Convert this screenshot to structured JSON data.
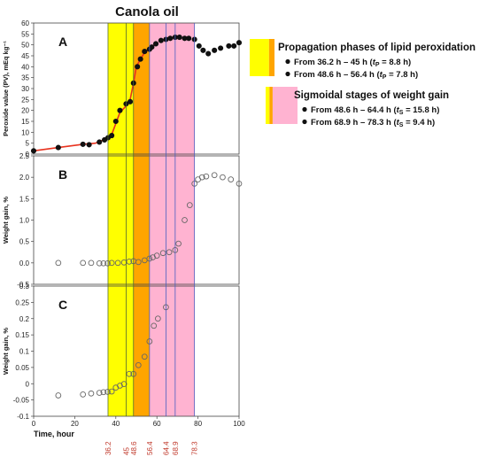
{
  "chart_data": {
    "type": "scatter",
    "title": "Canola oil",
    "xlabel": "Time, hour",
    "xlim": [
      0,
      100
    ],
    "x_ticks": [
      0,
      20,
      40,
      60,
      80,
      100
    ],
    "highlight_lines": [
      36.2,
      45,
      48.6,
      56.4,
      64.4,
      68.9,
      78.3
    ],
    "highlight_labels": [
      "36.2",
      "45",
      "48.6",
      "56.4",
      "64.4",
      "68.9",
      "78.3"
    ],
    "shaded_regions": [
      {
        "from": 36.2,
        "to": 45,
        "color": "#ffff00"
      },
      {
        "from": 45,
        "to": 48.6,
        "color": "#ffff00"
      },
      {
        "from": 48.6,
        "to": 56.4,
        "color": "#ffa500"
      },
      {
        "from": 56.4,
        "to": 78.3,
        "color": "#ffb3d1"
      }
    ],
    "panels": [
      {
        "letter": "A",
        "ylabel": "Peroxide value (PV), mEq kg⁻¹",
        "ylim": [
          0,
          60
        ],
        "y_ticks": [
          0,
          5,
          10,
          15,
          20,
          25,
          30,
          35,
          40,
          45,
          50,
          55,
          60
        ],
        "marker": "filled",
        "fit_color": "#e8321e",
        "series": [
          {
            "x": [
              0,
              12,
              24,
              27,
              32,
              34.5,
              36.2,
              38,
              40,
              42,
              45,
              47,
              48.6,
              50.5,
              52,
              54,
              56.4,
              57.5,
              59.5,
              62,
              64.4,
              66.5,
              68.9,
              71,
              73.5,
              75.5,
              78.3,
              80.5,
              82.5,
              85,
              88,
              91,
              95,
              97.5,
              100
            ],
            "y": [
              1.5,
              3,
              4.5,
              4.3,
              5.5,
              6.5,
              7.5,
              8.5,
              15,
              20,
              23,
              24,
              32.5,
              40,
              43.5,
              47,
              48,
              49,
              50.5,
              52,
              52.5,
              53,
              53.5,
              53.5,
              53,
              53,
              52.5,
              49.5,
              47.5,
              46,
              47.5,
              48.5,
              49.5,
              49.5,
              51
            ]
          }
        ],
        "fit": {
          "x": [
            0,
            12,
            24,
            30,
            34,
            36.2,
            38,
            40,
            42,
            45,
            47,
            48.6,
            50,
            52,
            54,
            56.4,
            58,
            60
          ],
          "y": [
            1.5,
            3,
            4.5,
            5,
            6.5,
            7.5,
            9,
            14,
            19,
            22,
            25,
            32.5,
            40,
            43.5,
            46.5,
            48,
            49.5,
            51
          ]
        }
      },
      {
        "letter": "B",
        "ylabel": "Weight gain, %",
        "ylim": [
          -0.5,
          2.5
        ],
        "y_ticks": [
          -0.5,
          0.0,
          0.5,
          1.0,
          1.5,
          2.0,
          2.5
        ],
        "y_tick_labels": [
          "-0.5",
          "0.0",
          "0.5",
          "1.0",
          "1.5",
          "2.0",
          "2.5"
        ],
        "marker": "open",
        "series": [
          {
            "x": [
              12,
              24,
              28,
              32,
              34,
              36,
              38,
              41,
              44,
              46.5,
              48.6,
              51,
              54,
              56.4,
              58,
              60,
              63,
              66,
              68.9,
              70.5,
              73.5,
              76,
              78.3,
              80,
              82,
              84,
              88,
              92,
              96,
              100
            ],
            "y": [
              0,
              0,
              0,
              -0.01,
              -0.01,
              -0.01,
              0,
              0,
              0.01,
              0.03,
              0.04,
              0.02,
              0.06,
              0.1,
              0.13,
              0.17,
              0.23,
              0.25,
              0.3,
              0.45,
              1.0,
              1.35,
              1.85,
              1.95,
              2.0,
              2.02,
              2.05,
              2.0,
              1.95,
              1.85
            ]
          }
        ]
      },
      {
        "letter": "C",
        "ylabel": "Weight gain, %",
        "ylim": [
          -0.1,
          0.3
        ],
        "y_ticks": [
          -0.1,
          -0.05,
          0,
          0.05,
          0.1,
          0.15,
          0.2,
          0.25,
          0.3
        ],
        "y_tick_labels": [
          "-0.1",
          "-0.05",
          "0",
          "0.05",
          "0.1",
          "0.15",
          "0.2",
          "0.25",
          "0.3"
        ],
        "marker": "open",
        "series": [
          {
            "x": [
              12,
              24,
              28,
              32,
              34,
              36,
              38,
              40,
              42,
              44,
              46.5,
              48.6,
              51,
              54,
              56.4,
              58.5,
              60.5,
              64.4
            ],
            "y": [
              -0.036,
              -0.033,
              -0.03,
              -0.028,
              -0.026,
              -0.025,
              -0.024,
              -0.012,
              -0.006,
              -0.001,
              0.03,
              0.03,
              0.057,
              0.083,
              0.13,
              0.178,
              0.2,
              0.235
            ]
          }
        ]
      }
    ],
    "legend": {
      "propagation": {
        "heading": "Propagation phases of lipid peroxidation",
        "items": [
          {
            "text": "From 36.2 h – 45 h (",
            "sym": "t",
            "sub": "P",
            "tail": " = 8.8 h)"
          },
          {
            "text": "From 48.6 h – 56.4 h (",
            "sym": "t",
            "sub": "P",
            "tail": " = 7.8 h)"
          }
        ],
        "swatch_colors": [
          "#ffff00",
          "#ffa500"
        ]
      },
      "sigmoidal": {
        "heading": "Sigmoidal stages of weight gain",
        "items": [
          {
            "text": "From 48.6 h – 64.4 h (",
            "sym": "t",
            "sub": "S",
            "tail": " = 15.8 h)"
          },
          {
            "text": "From 68.9 h – 78.3 h (",
            "sym": "t",
            "sub": "S",
            "tail": " = 9.4 h)"
          }
        ],
        "swatch_colors": [
          "#ffff00",
          "#ffa500",
          "#ffb3d1"
        ]
      }
    }
  },
  "colors": {
    "yellow": "#ffff00",
    "orange": "#ffa500",
    "pink": "#ffb3d1",
    "vline_dark": "#556b2f",
    "vline_blue": "#4a5fc1",
    "vtick_label": "#c0392b",
    "fit_line": "#e8321e"
  }
}
